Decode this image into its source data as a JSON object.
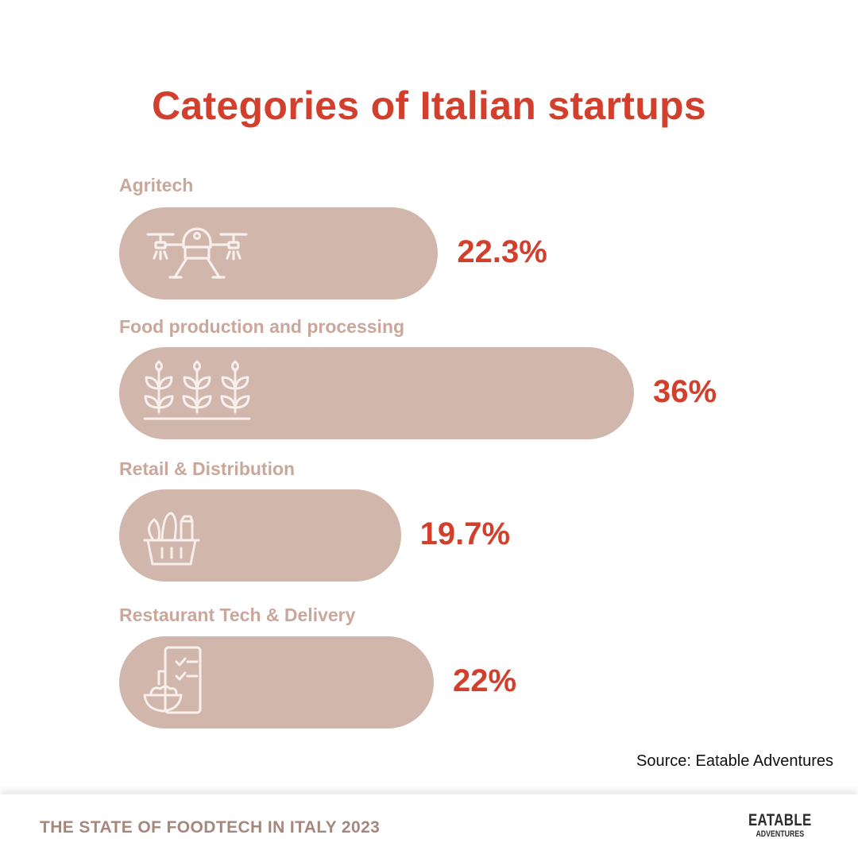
{
  "chart_data": {
    "type": "bar",
    "orientation": "horizontal",
    "title": "Categories of Italian startups",
    "categories": [
      "Agritech",
      "Food production and processing",
      "Retail & Distribution",
      "Restaurant Tech & Delivery"
    ],
    "values": [
      22.3,
      36,
      19.7,
      22
    ],
    "value_labels": [
      "22.3%",
      "36%",
      "19.7%",
      "22%"
    ],
    "unit": "%",
    "icons": [
      "drone-icon",
      "crops-icon",
      "grocery-basket-icon",
      "phone-order-icon"
    ],
    "xlim": [
      0,
      36
    ],
    "source": "Source: Eatable Adventures"
  },
  "footer": {
    "text": "THE STATE OF FOODTECH IN ITALY 2023",
    "logo_line1": "EATABLE",
    "logo_line2": "ADVENTURES"
  },
  "colors": {
    "accent": "#d23f2c",
    "bar": "#d0b6ab",
    "label": "#caa79b",
    "footer_text": "#a6877b"
  }
}
